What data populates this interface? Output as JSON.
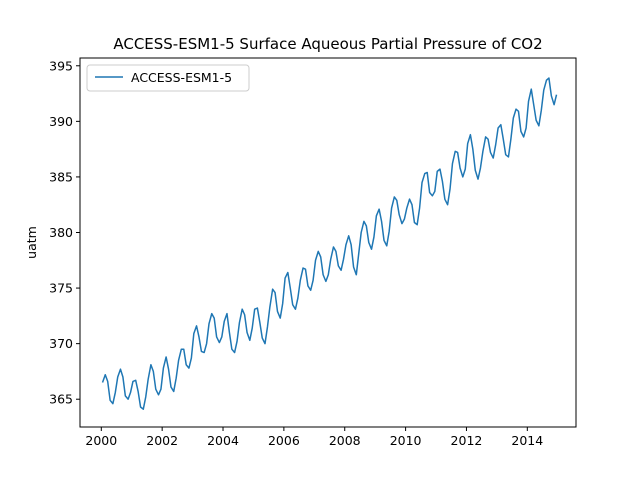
{
  "chart_data": {
    "type": "line",
    "title": "ACCESS-ESM1-5 Surface Aqueous Partial Pressure of CO2",
    "xlabel": "",
    "ylabel": "uatm",
    "xlim": [
      1999.3,
      2015.6
    ],
    "ylim": [
      362.5,
      395.7
    ],
    "xticks": [
      2000,
      2002,
      2004,
      2006,
      2008,
      2010,
      2012,
      2014
    ],
    "yticks": [
      365,
      370,
      375,
      380,
      385,
      390,
      395
    ],
    "legend_position": "top-left",
    "grid": false,
    "series": [
      {
        "name": "ACCESS-ESM1-5",
        "color": "#1f77b4",
        "x": [
          2000.04,
          2000.13,
          2000.21,
          2000.29,
          2000.38,
          2000.46,
          2000.54,
          2000.63,
          2000.71,
          2000.79,
          2000.88,
          2000.96,
          2001.04,
          2001.13,
          2001.21,
          2001.29,
          2001.38,
          2001.46,
          2001.54,
          2001.63,
          2001.71,
          2001.79,
          2001.88,
          2001.96,
          2002.04,
          2002.13,
          2002.21,
          2002.29,
          2002.38,
          2002.46,
          2002.54,
          2002.63,
          2002.71,
          2002.79,
          2002.88,
          2002.96,
          2003.04,
          2003.13,
          2003.21,
          2003.29,
          2003.38,
          2003.46,
          2003.54,
          2003.63,
          2003.71,
          2003.79,
          2003.88,
          2003.96,
          2004.04,
          2004.13,
          2004.21,
          2004.29,
          2004.38,
          2004.46,
          2004.54,
          2004.63,
          2004.71,
          2004.79,
          2004.88,
          2004.96,
          2005.04,
          2005.13,
          2005.21,
          2005.29,
          2005.38,
          2005.46,
          2005.54,
          2005.63,
          2005.71,
          2005.79,
          2005.88,
          2005.96,
          2006.04,
          2006.13,
          2006.21,
          2006.29,
          2006.38,
          2006.46,
          2006.54,
          2006.63,
          2006.71,
          2006.79,
          2006.88,
          2006.96,
          2007.04,
          2007.13,
          2007.21,
          2007.29,
          2007.38,
          2007.46,
          2007.54,
          2007.63,
          2007.71,
          2007.79,
          2007.88,
          2007.96,
          2008.04,
          2008.13,
          2008.21,
          2008.29,
          2008.38,
          2008.46,
          2008.54,
          2008.63,
          2008.71,
          2008.79,
          2008.88,
          2008.96,
          2009.04,
          2009.13,
          2009.21,
          2009.29,
          2009.38,
          2009.46,
          2009.54,
          2009.63,
          2009.71,
          2009.79,
          2009.88,
          2009.96,
          2010.04,
          2010.13,
          2010.21,
          2010.29,
          2010.38,
          2010.46,
          2010.54,
          2010.63,
          2010.71,
          2010.79,
          2010.88,
          2010.96,
          2011.04,
          2011.13,
          2011.21,
          2011.29,
          2011.38,
          2011.46,
          2011.54,
          2011.63,
          2011.71,
          2011.79,
          2011.88,
          2011.96,
          2012.04,
          2012.13,
          2012.21,
          2012.29,
          2012.38,
          2012.46,
          2012.54,
          2012.63,
          2012.71,
          2012.79,
          2012.88,
          2012.96,
          2013.04,
          2013.13,
          2013.21,
          2013.29,
          2013.38,
          2013.46,
          2013.54,
          2013.63,
          2013.71,
          2013.79,
          2013.88,
          2013.96,
          2014.04,
          2014.13,
          2014.21,
          2014.29,
          2014.38,
          2014.46,
          2014.54,
          2014.63,
          2014.71,
          2014.79,
          2014.88,
          2014.96
        ],
        "y": [
          366.5,
          367.2,
          366.6,
          364.9,
          364.6,
          365.6,
          367.0,
          367.7,
          367.0,
          365.3,
          365.0,
          365.6,
          366.6,
          366.7,
          365.7,
          364.3,
          364.1,
          365.2,
          366.8,
          368.1,
          367.5,
          365.9,
          365.4,
          365.9,
          367.8,
          368.8,
          367.7,
          366.1,
          365.7,
          366.9,
          368.5,
          369.5,
          369.5,
          368.1,
          367.8,
          368.7,
          370.9,
          371.6,
          370.6,
          369.3,
          369.2,
          370.0,
          371.8,
          372.7,
          372.3,
          370.6,
          370.1,
          370.6,
          372.0,
          372.7,
          371.0,
          369.5,
          369.2,
          370.2,
          371.9,
          373.1,
          372.6,
          371.0,
          370.3,
          371.4,
          373.1,
          373.2,
          371.9,
          370.5,
          370.0,
          371.5,
          373.3,
          374.9,
          374.6,
          372.9,
          372.3,
          373.6,
          375.9,
          376.4,
          375.0,
          373.5,
          373.1,
          374.1,
          375.7,
          376.8,
          376.7,
          375.2,
          374.8,
          375.7,
          377.5,
          378.3,
          377.8,
          376.2,
          375.6,
          376.2,
          377.6,
          378.7,
          378.3,
          377.0,
          376.6,
          377.6,
          378.9,
          379.7,
          378.9,
          376.9,
          376.2,
          378.1,
          380.0,
          381.0,
          380.6,
          379.1,
          378.5,
          379.6,
          381.5,
          382.1,
          381.0,
          379.3,
          378.8,
          380.1,
          382.2,
          383.2,
          382.9,
          381.6,
          380.8,
          381.2,
          382.2,
          383.0,
          382.5,
          380.9,
          380.7,
          382.2,
          384.5,
          385.3,
          385.4,
          383.6,
          383.3,
          383.7,
          385.5,
          385.7,
          384.6,
          383.0,
          382.5,
          383.9,
          386.2,
          387.3,
          387.2,
          385.8,
          385.0,
          385.7,
          388.0,
          388.8,
          387.5,
          385.6,
          384.8,
          385.8,
          387.3,
          388.6,
          388.4,
          387.2,
          386.7,
          387.9,
          389.4,
          389.7,
          388.4,
          387.0,
          386.8,
          388.4,
          390.3,
          391.1,
          390.9,
          389.1,
          388.6,
          389.4,
          391.8,
          392.9,
          391.5,
          390.1,
          389.6,
          391.0,
          392.8,
          393.7,
          393.9,
          392.3,
          391.5,
          392.4
        ]
      }
    ]
  }
}
